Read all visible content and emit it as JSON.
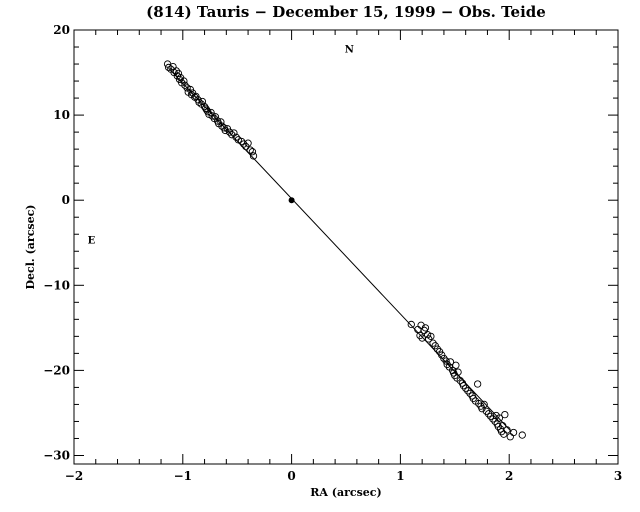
{
  "chart_data": {
    "type": "scatter",
    "title": "(814) Tauris − December 15, 1999 − Obs. Teide",
    "xlabel": "RA (arcsec)",
    "ylabel": "Decl. (arcsec)",
    "xlim": [
      -2,
      3
    ],
    "ylim": [
      -31,
      20
    ],
    "x_ticks": [
      -2,
      -1,
      0,
      1,
      2,
      3
    ],
    "x_tick_labels": [
      "−2",
      "−1",
      "0",
      "1",
      "2",
      "3"
    ],
    "y_ticks": [
      -30,
      -20,
      -10,
      0,
      10,
      20
    ],
    "y_tick_labels": [
      "−30",
      "−20",
      "−10",
      "0",
      "10",
      "20"
    ],
    "annotations": [
      {
        "text": "N",
        "x": 0.53,
        "y": 17.8
      },
      {
        "text": "E",
        "x": -1.84,
        "y": -4.6
      }
    ],
    "fit_line": {
      "x": [
        -1.13,
        2.02
      ],
      "y": [
        15.5,
        -27.2
      ]
    },
    "primary": {
      "x": 0.0,
      "y": 0.0
    },
    "series": [
      {
        "marker": "open-circle",
        "x": [
          -1.14,
          -1.13,
          -1.11,
          -1.09,
          -1.08,
          -1.06,
          -1.05,
          -1.04,
          -1.03,
          -1.02,
          -1.01,
          -0.99,
          -0.98,
          -0.96,
          -0.95,
          -0.93,
          -0.92,
          -0.91,
          -0.89,
          -0.88,
          -0.86,
          -0.85,
          -0.83,
          -0.82,
          -0.8,
          -0.79,
          -0.78,
          -0.77,
          -0.76,
          -0.74,
          -0.73,
          -0.71,
          -0.7,
          -0.68,
          -0.67,
          -0.65,
          -0.64,
          -0.62,
          -0.61,
          -0.59,
          -0.57,
          -0.55,
          -0.53,
          -0.51,
          -0.49,
          -0.46,
          -0.44,
          -0.42,
          -0.4,
          -0.38,
          -0.36,
          -0.35
        ],
        "y": [
          16.0,
          15.6,
          15.4,
          15.7,
          15.0,
          15.2,
          14.6,
          14.9,
          14.2,
          14.4,
          13.8,
          14.0,
          13.5,
          13.2,
          12.7,
          13.0,
          12.4,
          12.6,
          12.1,
          12.2,
          11.8,
          11.5,
          11.3,
          11.6,
          11.0,
          10.8,
          10.6,
          10.4,
          10.1,
          10.3,
          9.9,
          9.6,
          9.8,
          9.3,
          9.0,
          9.2,
          8.7,
          8.5,
          8.2,
          8.4,
          8.0,
          7.7,
          7.9,
          7.4,
          7.1,
          6.9,
          6.6,
          6.3,
          6.7,
          5.9,
          5.7,
          5.2
        ]
      },
      {
        "marker": "open-circle",
        "x": [
          1.1,
          1.16,
          1.18,
          1.19,
          1.2,
          1.22,
          1.23,
          1.25,
          1.26,
          1.28,
          1.3,
          1.32,
          1.34,
          1.36,
          1.38,
          1.4,
          1.42,
          1.43,
          1.45,
          1.46,
          1.48,
          1.49,
          1.5,
          1.51,
          1.52,
          1.53,
          1.55,
          1.57,
          1.58,
          1.6,
          1.62,
          1.64,
          1.66,
          1.67,
          1.69,
          1.71,
          1.72,
          1.74,
          1.75,
          1.77,
          1.79,
          1.81,
          1.83,
          1.85,
          1.87,
          1.88,
          1.89,
          1.9,
          1.91,
          1.92,
          1.93,
          1.94,
          1.95,
          1.96,
          1.98,
          2.01,
          2.04,
          2.12
        ],
        "y": [
          -14.6,
          -15.2,
          -15.9,
          -14.7,
          -16.2,
          -15.3,
          -15.0,
          -15.8,
          -16.3,
          -16.0,
          -16.8,
          -17.1,
          -17.5,
          -17.8,
          -18.2,
          -18.6,
          -18.9,
          -19.3,
          -19.6,
          -19.0,
          -20.0,
          -20.3,
          -20.6,
          -19.4,
          -20.9,
          -20.2,
          -21.2,
          -21.5,
          -21.8,
          -22.1,
          -22.4,
          -22.7,
          -23.0,
          -23.3,
          -23.6,
          -21.6,
          -23.9,
          -24.2,
          -24.5,
          -24.0,
          -24.8,
          -25.1,
          -25.4,
          -25.7,
          -26.0,
          -25.3,
          -26.3,
          -26.6,
          -25.6,
          -26.9,
          -27.2,
          -26.5,
          -27.5,
          -25.2,
          -27.0,
          -27.8,
          -27.3,
          -27.6
        ]
      }
    ]
  }
}
